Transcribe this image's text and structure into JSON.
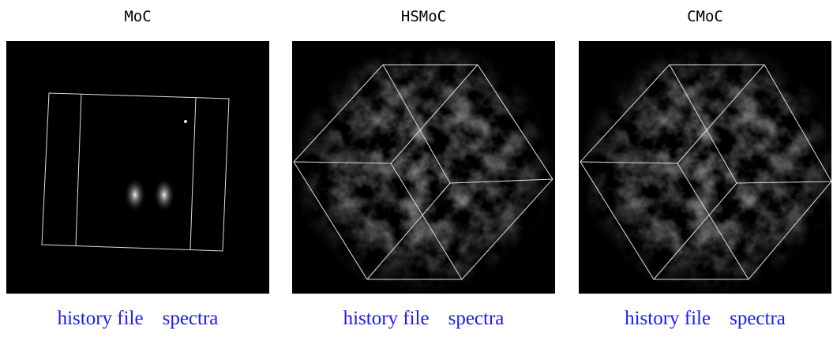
{
  "panels": [
    {
      "title": "MoC",
      "links": [
        "history file",
        "spectra"
      ]
    },
    {
      "title": "HSMoC",
      "links": [
        "history file",
        "spectra"
      ]
    },
    {
      "title": "CMoC",
      "links": [
        "history file",
        "spectra"
      ]
    }
  ]
}
